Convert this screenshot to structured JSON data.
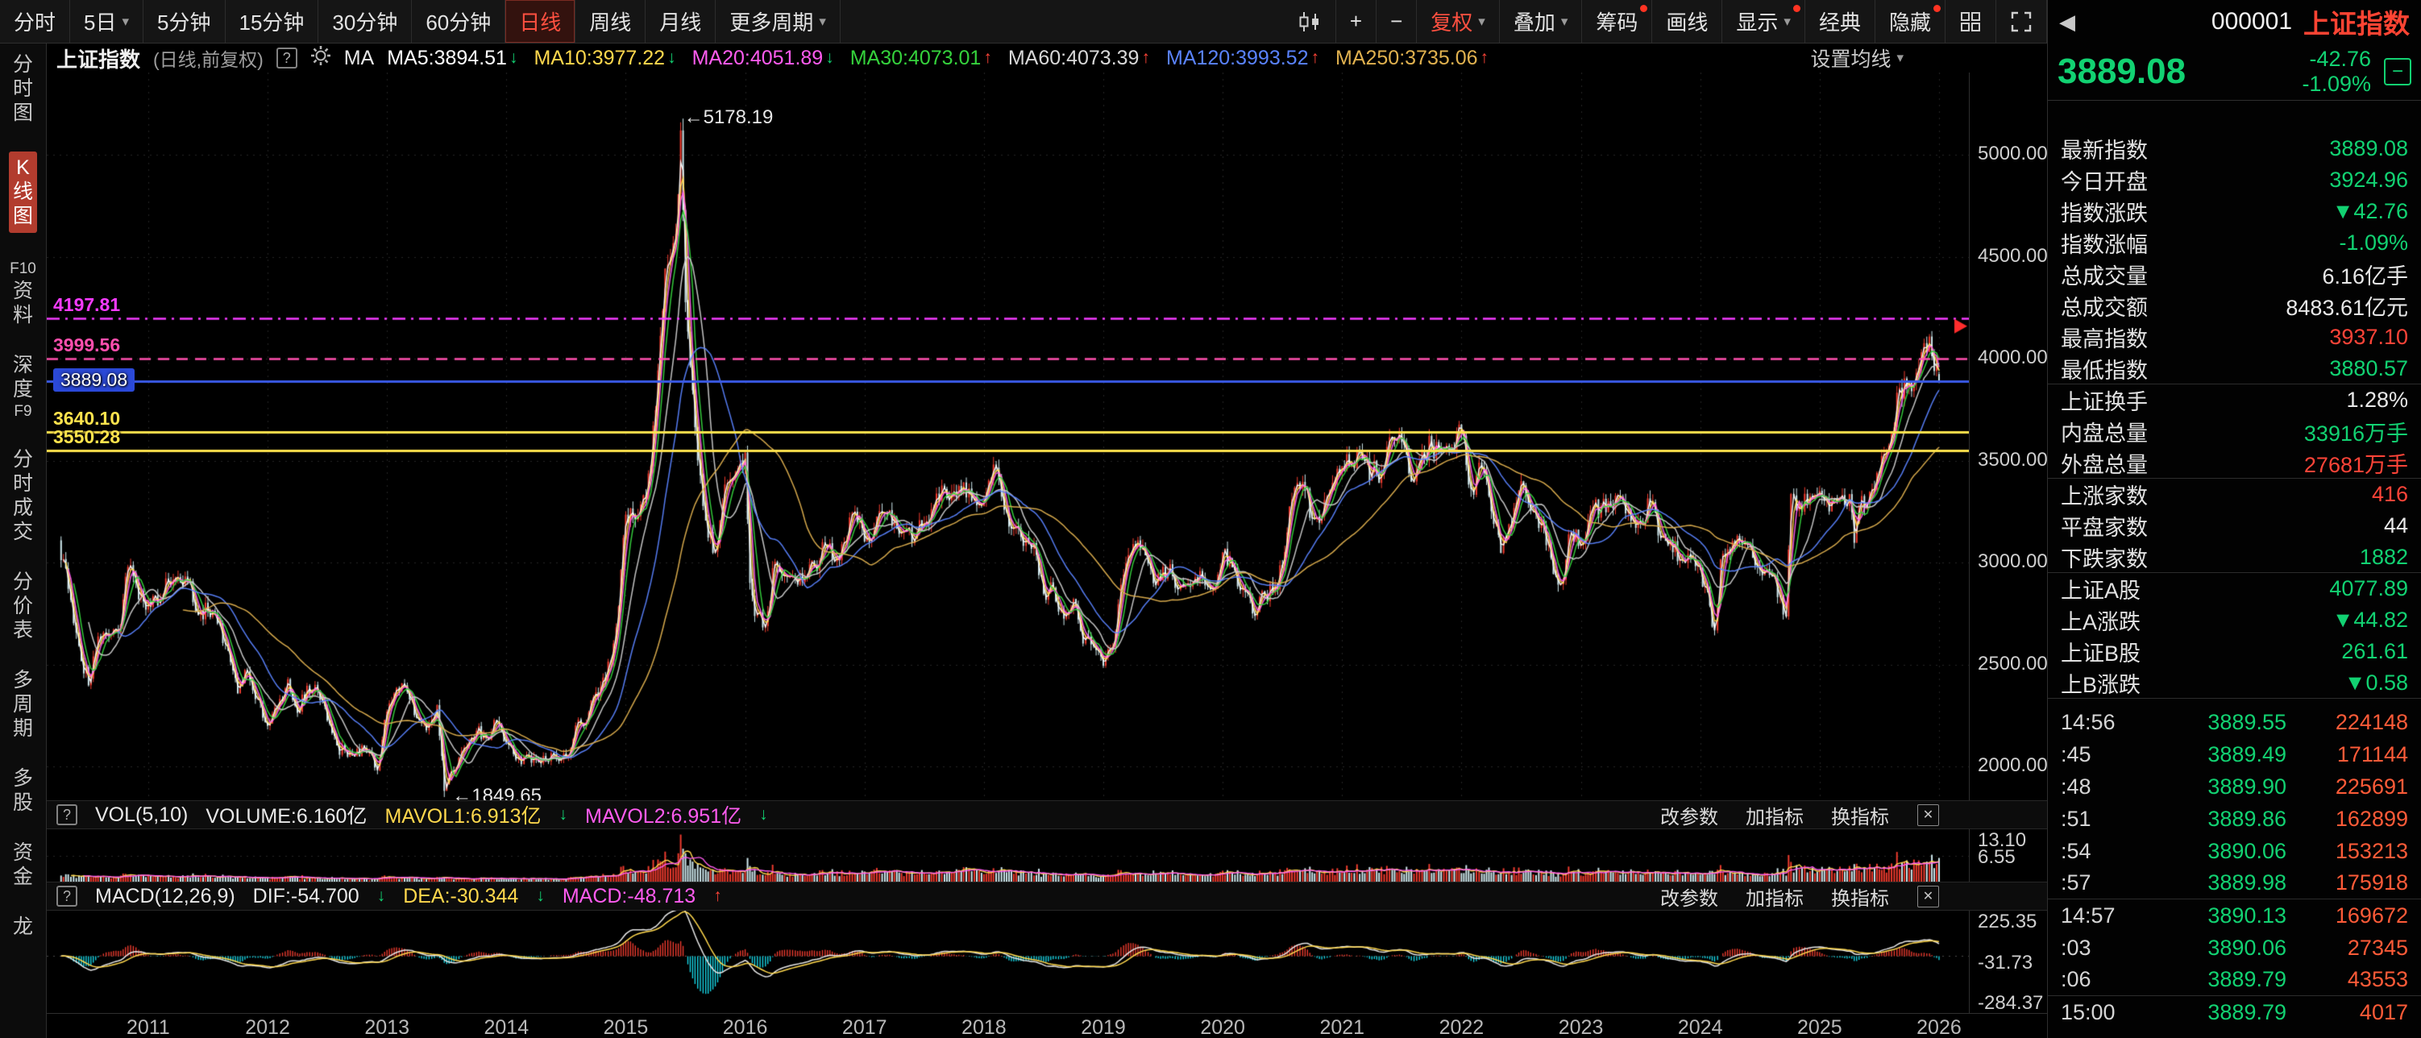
{
  "icons": {
    "help": "?",
    "caret": "▾",
    "back": "◀",
    "minus": "−",
    "close": "✕"
  },
  "toolbar": {
    "periods": [
      {
        "id": "fenshi",
        "label": "分时"
      },
      {
        "id": "5d",
        "label": "5日",
        "caret": true
      },
      {
        "id": "5m",
        "label": "5分钟"
      },
      {
        "id": "15m",
        "label": "15分钟"
      },
      {
        "id": "30m",
        "label": "30分钟"
      },
      {
        "id": "60m",
        "label": "60分钟"
      },
      {
        "id": "daily",
        "label": "日线",
        "active": true
      },
      {
        "id": "weekly",
        "label": "周线"
      },
      {
        "id": "monthly",
        "label": "月线"
      },
      {
        "id": "more-periods",
        "label": "更多周期",
        "caret": true
      }
    ],
    "tools": [
      {
        "id": "candle-style",
        "icon": "candle"
      },
      {
        "id": "zoom-in",
        "label": "+"
      },
      {
        "id": "zoom-out",
        "label": "−"
      },
      {
        "id": "fuquan",
        "label": "复权",
        "caret": true,
        "red": true
      },
      {
        "id": "overlay",
        "label": "叠加",
        "caret": true
      },
      {
        "id": "chouma",
        "label": "筹码",
        "dot": true
      },
      {
        "id": "draw-line",
        "label": "画线"
      },
      {
        "id": "display",
        "label": "显示",
        "caret": true,
        "dot": true
      },
      {
        "id": "classic",
        "label": "经典"
      },
      {
        "id": "hide",
        "label": "隐藏",
        "dot": true
      },
      {
        "id": "multi-grid",
        "icon": "grid"
      },
      {
        "id": "fullscreen",
        "icon": "expand"
      }
    ]
  },
  "sidebar": {
    "items": [
      {
        "id": "fenshitu",
        "lines": [
          "分",
          "时",
          "图"
        ]
      },
      {
        "id": "kxiantu",
        "lines": [
          "K",
          "线",
          "图"
        ],
        "active": true
      },
      {
        "id": "f10-ziliao",
        "lines": [
          "F10",
          "资",
          "料"
        ]
      },
      {
        "id": "shendu-f9",
        "lines": [
          "深",
          "度",
          "F9"
        ]
      },
      {
        "id": "fenshi-chengjiao",
        "lines": [
          "分",
          "时",
          "成",
          "交"
        ]
      },
      {
        "id": "fenjiabiao",
        "lines": [
          "分",
          "价",
          "表"
        ]
      },
      {
        "id": "duozhouqi",
        "lines": [
          "多",
          "周",
          "期"
        ]
      },
      {
        "id": "duogu",
        "lines": [
          "多",
          "股"
        ]
      },
      {
        "id": "zijin",
        "lines": [
          "资",
          "金"
        ]
      },
      {
        "id": "longhu",
        "lines": [
          "龙"
        ]
      }
    ]
  },
  "indicator_bar": {
    "symbol": "上证指数",
    "mode": "(日线,前复权)",
    "ma_label": "MA",
    "settings_label": "设置均线",
    "mas": [
      {
        "label": "MA5:3894.51",
        "arrow": "↓",
        "color": "#ffffff"
      },
      {
        "label": "MA10:3977.22",
        "arrow": "↓",
        "color": "#ffd84d"
      },
      {
        "label": "MA20:4051.89",
        "arrow": "↓",
        "color": "#ff5cf0"
      },
      {
        "label": "MA30:4073.01",
        "arrow": "↑",
        "color": "#35d23c"
      },
      {
        "label": "MA60:4073.39",
        "arrow": "↑",
        "color": "#d8d8d8"
      },
      {
        "label": "MA120:3993.52",
        "arrow": "↑",
        "color": "#5a83ff"
      },
      {
        "label": "MA250:3735.06",
        "arrow": "↑",
        "color": "#e0b14f"
      }
    ]
  },
  "vol_panel": {
    "title": "VOL(5,10)",
    "volume": "VOLUME:6.160亿",
    "mavol1": "MAVOL1:6.913亿",
    "mavol1_arrow": "↓",
    "mavol2": "MAVOL2:6.951亿",
    "mavol2_arrow": "↓",
    "links": [
      "改参数",
      "加指标",
      "换指标"
    ],
    "scale": [
      {
        "label": "13.10",
        "value": 13.1
      },
      {
        "label": "6.55",
        "value": 6.55
      }
    ]
  },
  "macd_panel": {
    "title": "MACD(12,26,9)",
    "dif": "DIF:-54.700",
    "dif_arrow": "↓",
    "dea": "DEA:-30.344",
    "dea_arrow": "↓",
    "macd": "MACD:-48.713",
    "macd_arrow": "↑",
    "links": [
      "改参数",
      "加指标",
      "换指标"
    ],
    "scale": [
      {
        "label": "225.35",
        "value": 225.35
      },
      {
        "label": "-31.73",
        "value": -31.73
      },
      {
        "label": "-284.37",
        "value": -284.37
      }
    ]
  },
  "quote_panel": {
    "code": "000001",
    "name": "上证指数",
    "price": "3889.08",
    "change": "-42.76",
    "change_pct": "-1.09%",
    "rows": [
      {
        "label": "最新指数",
        "value": "3889.08",
        "color": "green"
      },
      {
        "label": "今日开盘",
        "value": "3924.96",
        "color": "green"
      },
      {
        "label": "指数涨跌",
        "value": "▼42.76",
        "color": "green"
      },
      {
        "label": "指数涨幅",
        "value": "-1.09%",
        "color": "green"
      },
      {
        "label": "总成交量",
        "value": "6.16亿手",
        "color": "white"
      },
      {
        "label": "总成交额",
        "value": "8483.61亿元",
        "color": "white"
      },
      {
        "label": "最高指数",
        "value": "3937.10",
        "color": "red"
      },
      {
        "label": "最低指数",
        "value": "3880.57",
        "color": "green",
        "sep_after": true
      },
      {
        "label": "上证换手",
        "value": "1.28%",
        "color": "white"
      },
      {
        "label": "内盘总量",
        "value": "33916万手",
        "color": "green"
      },
      {
        "label": "外盘总量",
        "value": "27681万手",
        "color": "red",
        "sep_after": true
      },
      {
        "label": "上涨家数",
        "value": "416",
        "color": "red"
      },
      {
        "label": "平盘家数",
        "value": "44",
        "color": "white"
      },
      {
        "label": "下跌家数",
        "value": "1882",
        "color": "green",
        "sep_after": true
      },
      {
        "label": "上证A股",
        "value": "4077.89",
        "color": "green"
      },
      {
        "label": "上A涨跌",
        "value": "▼44.82",
        "color": "green"
      },
      {
        "label": "上证B股",
        "value": "261.61",
        "color": "green"
      },
      {
        "label": "上B涨跌",
        "value": "▼0.58",
        "color": "green",
        "sep_after": true
      }
    ],
    "ticks": [
      {
        "time": "14:56",
        "price": "3889.55",
        "vol": "224148"
      },
      {
        "time": ":45",
        "price": "3889.49",
        "vol": "171144"
      },
      {
        "time": ":48",
        "price": "3889.90",
        "vol": "225691"
      },
      {
        "time": ":51",
        "price": "3889.86",
        "vol": "162899"
      },
      {
        "time": ":54",
        "price": "3890.06",
        "vol": "153213"
      },
      {
        "time": ":57",
        "price": "3889.98",
        "vol": "175918",
        "sep_after": true
      },
      {
        "time": "14:57",
        "price": "3890.13",
        "vol": "169672"
      },
      {
        "time": ":03",
        "price": "3890.06",
        "vol": "27345"
      },
      {
        "time": ":06",
        "price": "3889.79",
        "vol": "43553",
        "sep_after": true
      },
      {
        "time": "15:00",
        "price": "3889.79",
        "vol": "4017"
      }
    ]
  },
  "chart_data": {
    "type": "candlestick",
    "symbol": "上证指数",
    "period": "日线,前复权",
    "x_axis_years": [
      "2011",
      "2012",
      "2013",
      "2014",
      "2015",
      "2016",
      "2017",
      "2018",
      "2019",
      "2020",
      "2021",
      "2022",
      "2023",
      "2024",
      "2025",
      "2026"
    ],
    "y_ticks": [
      "5000.00",
      "4500.00",
      "4000.00",
      "3500.00",
      "3000.00",
      "2500.00",
      "2000.00"
    ],
    "y_tick_values": [
      5000,
      4500,
      4000,
      3500,
      3000,
      2500,
      2000
    ],
    "y_range": [
      1834,
      5404
    ],
    "t_range": [
      2010.15,
      2026.25
    ],
    "annotations": [
      {
        "label": "←5178.19",
        "t": 2015.46,
        "v": 5178.19
      },
      {
        "label": "←1849.65",
        "t": 2013.52,
        "v": 1849.65
      }
    ],
    "hlines": [
      {
        "label": "4197.81",
        "value": 4197.81,
        "color": "#f53bff",
        "style": "dashdot"
      },
      {
        "label": "3999.56",
        "value": 3999.56,
        "color": "#ff4fae",
        "style": "dashed"
      },
      {
        "label": "3889.08",
        "value": 3889.08,
        "color": "#3a5ae8",
        "style": "solid",
        "chip": true
      },
      {
        "label": "3640.10",
        "value": 3640.1,
        "color": "#ffe34d",
        "style": "solid"
      },
      {
        "label": "3550.28",
        "value": 3550.28,
        "color": "#ffe34d",
        "style": "solid"
      }
    ],
    "edge_marker": {
      "v": 4160,
      "color": "#ff2d2d"
    },
    "vol_scale_max": 13.6,
    "anchors": [
      [
        2010.25,
        3109
      ],
      [
        2010.33,
        2871
      ],
      [
        2010.42,
        2592
      ],
      [
        2010.5,
        2398
      ],
      [
        2010.58,
        2638
      ],
      [
        2010.67,
        2639
      ],
      [
        2010.75,
        2656
      ],
      [
        2010.83,
        2979
      ],
      [
        2010.92,
        2820
      ],
      [
        2011,
        2808
      ],
      [
        2011.08,
        2790
      ],
      [
        2011.17,
        2905
      ],
      [
        2011.25,
        2928
      ],
      [
        2011.33,
        2911
      ],
      [
        2011.42,
        2743
      ],
      [
        2011.5,
        2762
      ],
      [
        2011.58,
        2701
      ],
      [
        2011.67,
        2567
      ],
      [
        2011.75,
        2359
      ],
      [
        2011.83,
        2468
      ],
      [
        2011.92,
        2333
      ],
      [
        2012,
        2199
      ],
      [
        2012.08,
        2293
      ],
      [
        2012.17,
        2428
      ],
      [
        2012.25,
        2263
      ],
      [
        2012.33,
        2396
      ],
      [
        2012.42,
        2372
      ],
      [
        2012.5,
        2225
      ],
      [
        2012.58,
        2103
      ],
      [
        2012.67,
        2048
      ],
      [
        2012.75,
        2086
      ],
      [
        2012.83,
        2068
      ],
      [
        2012.92,
        1980
      ],
      [
        2013,
        2269
      ],
      [
        2013.08,
        2385
      ],
      [
        2013.17,
        2366
      ],
      [
        2013.25,
        2237
      ],
      [
        2013.33,
        2177
      ],
      [
        2013.42,
        2301
      ],
      [
        2013.48,
        1880
      ],
      [
        2013.54,
        1979
      ],
      [
        2013.58,
        1994
      ],
      [
        2013.67,
        2098
      ],
      [
        2013.75,
        2175
      ],
      [
        2013.83,
        2141
      ],
      [
        2013.92,
        2221
      ],
      [
        2014,
        2116
      ],
      [
        2014.08,
        2033
      ],
      [
        2014.17,
        2056
      ],
      [
        2014.25,
        2033
      ],
      [
        2014.33,
        2026
      ],
      [
        2014.42,
        2039
      ],
      [
        2014.5,
        2048
      ],
      [
        2014.58,
        2201
      ],
      [
        2014.67,
        2217
      ],
      [
        2014.75,
        2364
      ],
      [
        2014.83,
        2420
      ],
      [
        2014.92,
        2683
      ],
      [
        2015,
        3235
      ],
      [
        2015.08,
        3210
      ],
      [
        2015.17,
        3310
      ],
      [
        2015.25,
        3748
      ],
      [
        2015.33,
        4442
      ],
      [
        2015.42,
        4612
      ],
      [
        2015.46,
        5120
      ],
      [
        2015.5,
        4277
      ],
      [
        2015.58,
        3664
      ],
      [
        2015.67,
        3206
      ],
      [
        2015.75,
        3053
      ],
      [
        2015.83,
        3383
      ],
      [
        2015.92,
        3445
      ],
      [
        2016,
        3539
      ],
      [
        2016.04,
        2900
      ],
      [
        2016.08,
        2738
      ],
      [
        2016.17,
        2688
      ],
      [
        2016.25,
        3004
      ],
      [
        2016.33,
        2938
      ],
      [
        2016.42,
        2917
      ],
      [
        2016.5,
        2930
      ],
      [
        2016.58,
        2979
      ],
      [
        2016.67,
        3085
      ],
      [
        2016.75,
        3005
      ],
      [
        2016.83,
        3100
      ],
      [
        2016.92,
        3250
      ],
      [
        2017,
        3104
      ],
      [
        2017.08,
        3159
      ],
      [
        2017.17,
        3242
      ],
      [
        2017.25,
        3223
      ],
      [
        2017.33,
        3155
      ],
      [
        2017.42,
        3117
      ],
      [
        2017.5,
        3192
      ],
      [
        2017.58,
        3273
      ],
      [
        2017.67,
        3361
      ],
      [
        2017.75,
        3349
      ],
      [
        2017.83,
        3393
      ],
      [
        2017.92,
        3317
      ],
      [
        2018,
        3307
      ],
      [
        2018.08,
        3481
      ],
      [
        2018.17,
        3259
      ],
      [
        2018.25,
        3169
      ],
      [
        2018.33,
        3082
      ],
      [
        2018.42,
        3095
      ],
      [
        2018.5,
        2847
      ],
      [
        2018.58,
        2876
      ],
      [
        2018.67,
        2725
      ],
      [
        2018.75,
        2821
      ],
      [
        2018.83,
        2603
      ],
      [
        2018.92,
        2588
      ],
      [
        2019,
        2494
      ],
      [
        2019.08,
        2585
      ],
      [
        2019.17,
        2941
      ],
      [
        2019.25,
        3091
      ],
      [
        2019.33,
        3078
      ],
      [
        2019.42,
        2899
      ],
      [
        2019.5,
        2979
      ],
      [
        2019.58,
        2933
      ],
      [
        2019.67,
        2886
      ],
      [
        2019.75,
        2905
      ],
      [
        2019.83,
        2929
      ],
      [
        2019.92,
        2872
      ],
      [
        2020,
        3050
      ],
      [
        2020.08,
        2977
      ],
      [
        2020.17,
        2880
      ],
      [
        2020.25,
        2750
      ],
      [
        2020.33,
        2860
      ],
      [
        2020.42,
        2852
      ],
      [
        2020.5,
        2985
      ],
      [
        2020.58,
        3310
      ],
      [
        2020.67,
        3396
      ],
      [
        2020.75,
        3218
      ],
      [
        2020.83,
        3225
      ],
      [
        2020.92,
        3392
      ],
      [
        2021,
        3473
      ],
      [
        2021.08,
        3483
      ],
      [
        2021.17,
        3509
      ],
      [
        2021.25,
        3442
      ],
      [
        2021.33,
        3447
      ],
      [
        2021.42,
        3615
      ],
      [
        2021.5,
        3591
      ],
      [
        2021.58,
        3397
      ],
      [
        2021.67,
        3544
      ],
      [
        2021.75,
        3568
      ],
      [
        2021.83,
        3547
      ],
      [
        2021.92,
        3564
      ],
      [
        2022,
        3640
      ],
      [
        2022.08,
        3361
      ],
      [
        2022.17,
        3462
      ],
      [
        2022.25,
        3252
      ],
      [
        2022.33,
        3047
      ],
      [
        2022.42,
        3186
      ],
      [
        2022.5,
        3399
      ],
      [
        2022.58,
        3253
      ],
      [
        2022.67,
        3202
      ],
      [
        2022.75,
        3024
      ],
      [
        2022.83,
        2893
      ],
      [
        2022.92,
        3151
      ],
      [
        2023,
        3089
      ],
      [
        2023.08,
        3256
      ],
      [
        2023.17,
        3280
      ],
      [
        2023.25,
        3273
      ],
      [
        2023.33,
        3323
      ],
      [
        2023.42,
        3205
      ],
      [
        2023.5,
        3202
      ],
      [
        2023.58,
        3291
      ],
      [
        2023.67,
        3120
      ],
      [
        2023.75,
        3110
      ],
      [
        2023.83,
        3019
      ],
      [
        2023.92,
        3030
      ],
      [
        2024,
        2975
      ],
      [
        2024.08,
        2789
      ],
      [
        2024.12,
        2667
      ],
      [
        2024.17,
        3015
      ],
      [
        2024.25,
        3041
      ],
      [
        2024.33,
        3105
      ],
      [
        2024.42,
        3087
      ],
      [
        2024.5,
        2967
      ],
      [
        2024.58,
        2939
      ],
      [
        2024.67,
        2842
      ],
      [
        2024.72,
        2736
      ],
      [
        2024.76,
        3336
      ],
      [
        2024.83,
        3280
      ],
      [
        2024.92,
        3326
      ],
      [
        2025,
        3352
      ],
      [
        2025.08,
        3251
      ],
      [
        2025.17,
        3321
      ],
      [
        2025.25,
        3336
      ],
      [
        2025.29,
        3097
      ],
      [
        2025.33,
        3279
      ],
      [
        2025.42,
        3347
      ],
      [
        2025.5,
        3444
      ],
      [
        2025.58,
        3573
      ],
      [
        2025.67,
        3858
      ],
      [
        2025.75,
        3883
      ],
      [
        2025.83,
        3955
      ],
      [
        2025.92,
        4109
      ],
      [
        2026,
        3889.08
      ]
    ],
    "key_points": {
      "all_time_high": 5178.19,
      "major_low": 1849.65,
      "last_close": 3889.08,
      "last_open": 3924.96,
      "last_high": 3937.1,
      "last_low": 3880.57
    }
  }
}
